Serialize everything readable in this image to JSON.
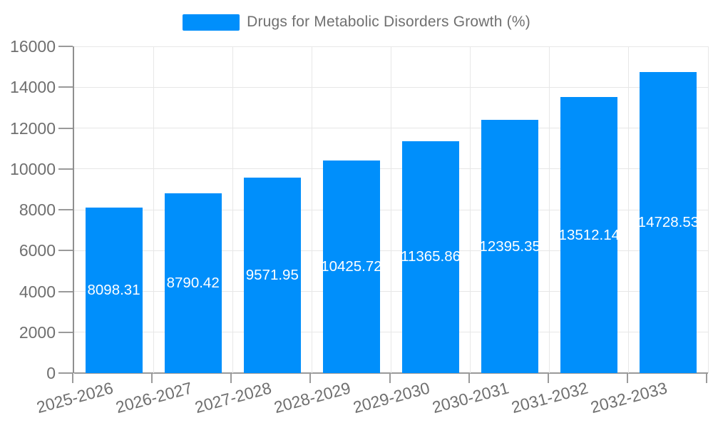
{
  "legend": {
    "series_label": "Drugs for Metabolic Disorders Growth (%)"
  },
  "chart_data": {
    "type": "bar",
    "title": "Drugs for Metabolic Disorders Growth (%)",
    "series": [
      {
        "name": "Drugs for Metabolic Disorders Growth (%)",
        "values": [
          8098.31,
          8790.42,
          9571.95,
          10425.72,
          11365.86,
          12395.35,
          13512.14,
          14728.53
        ],
        "data_labels": [
          "8098.31",
          "8790.42",
          "9571.95",
          "10425.72",
          "11365.86",
          "12395.35",
          "13512.14",
          "14728.53"
        ]
      }
    ],
    "categories": [
      "2025-2026",
      "2026-2027",
      "2027-2028",
      "2028-2029",
      "2029-2030",
      "2030-2031",
      "2031-2032",
      "2032-2033"
    ],
    "xlabel": "",
    "ylabel": "",
    "ylim": [
      0,
      16000
    ],
    "yticks": [
      0,
      2000,
      4000,
      6000,
      8000,
      10000,
      12000,
      14000,
      16000
    ],
    "ytick_labels": [
      "0",
      "2000",
      "4000",
      "6000",
      "8000",
      "10000",
      "12000",
      "14000",
      "16000"
    ],
    "grid": true,
    "legend_position": "top",
    "x_label_rotation_deg": -15,
    "colors": {
      "bar": "#008FFB",
      "data_label_text": "#ffffff",
      "axis_text": "#6f6f6f",
      "legend_text": "#707070",
      "gridline": "#e7e7e7",
      "axis_line": "#8f8f8f",
      "tick": "#9a9a9a",
      "background": "#ffffff"
    }
  }
}
